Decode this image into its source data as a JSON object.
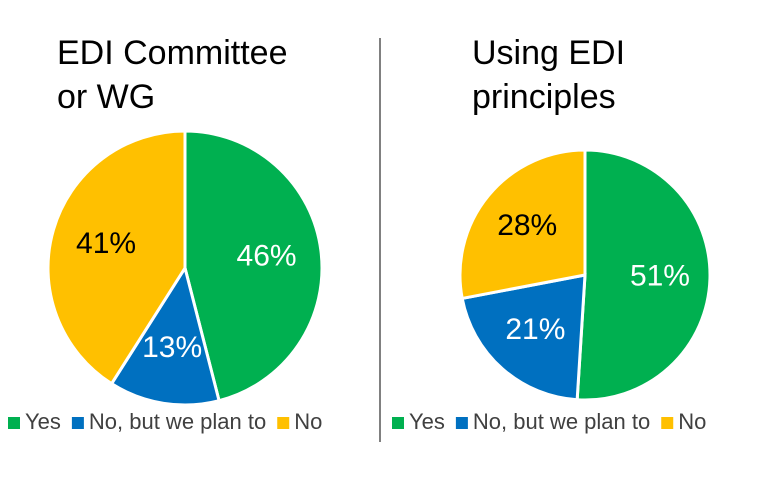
{
  "chart_data": [
    {
      "type": "pie",
      "title": "EDI Committee or WG",
      "categories": [
        "Yes",
        "No, but we plan to",
        "No"
      ],
      "values": [
        46,
        13,
        41
      ],
      "value_labels": [
        "46%",
        "13%",
        "41%"
      ],
      "colors": [
        "#00b050",
        "#0070c0",
        "#ffc000"
      ]
    },
    {
      "type": "pie",
      "title": "Using EDI principles",
      "categories": [
        "Yes",
        "No, but we plan to",
        "No"
      ],
      "values": [
        51,
        21,
        28
      ],
      "value_labels": [
        "51%",
        "21%",
        "28%"
      ],
      "colors": [
        "#00b050",
        "#0070c0",
        "#ffc000"
      ]
    }
  ]
}
